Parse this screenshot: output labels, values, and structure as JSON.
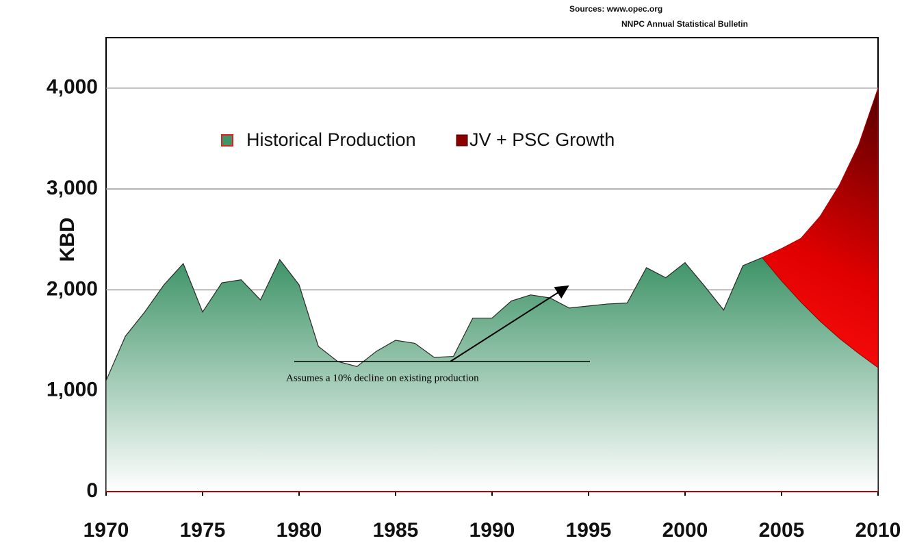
{
  "chart_data": {
    "type": "area",
    "sources": [
      "Sources: www.opec.org",
      "NNPC Annual Statistical Bulletin"
    ],
    "ylabel": "KBD",
    "annotation": "Assumes a 10% decline on existing production",
    "x": [
      1970,
      1971,
      1972,
      1973,
      1974,
      1975,
      1976,
      1977,
      1978,
      1979,
      1980,
      1981,
      1982,
      1983,
      1984,
      1985,
      1986,
      1987,
      1988,
      1989,
      1990,
      1991,
      1992,
      1993,
      1994,
      1995,
      1996,
      1997,
      1998,
      1999,
      2000,
      2001,
      2002,
      2003,
      2004,
      2005,
      2006,
      2007,
      2008,
      2009,
      2010
    ],
    "series": [
      {
        "name": "Historical Production",
        "color": "#3f9468",
        "values": [
          1100,
          1540,
          1780,
          2050,
          2260,
          1780,
          2070,
          2100,
          1900,
          2300,
          2050,
          1440,
          1290,
          1240,
          1390,
          1500,
          1470,
          1330,
          1340,
          1720,
          1720,
          1890,
          1950,
          1920,
          1820,
          1840,
          1860,
          1870,
          2220,
          2120,
          2270,
          2040,
          1800,
          2240,
          2320,
          2090,
          1880,
          1690,
          1520,
          1370,
          1230
        ]
      },
      {
        "name": "JV + PSC Growth",
        "color": "#cc0000",
        "values": [
          null,
          null,
          null,
          null,
          null,
          null,
          null,
          null,
          null,
          null,
          null,
          null,
          null,
          null,
          null,
          null,
          null,
          null,
          null,
          null,
          null,
          null,
          null,
          null,
          null,
          null,
          null,
          null,
          null,
          null,
          null,
          null,
          null,
          null,
          0,
          320,
          630,
          1040,
          1520,
          2070,
          2770
        ]
      }
    ],
    "stacked": true,
    "xlim": [
      1970,
      2010
    ],
    "xticks": [
      1970,
      1975,
      1980,
      1985,
      1990,
      1995,
      2000,
      2005,
      2010
    ],
    "ylim": [
      0,
      4500
    ],
    "yticks": [
      0,
      {
        "value": 1000,
        "label": "1,000"
      },
      {
        "value": 2000,
        "label": "2,000"
      },
      {
        "value": 3000,
        "label": "3,000"
      },
      {
        "value": 4000,
        "label": "4,000"
      }
    ],
    "grid": true
  }
}
